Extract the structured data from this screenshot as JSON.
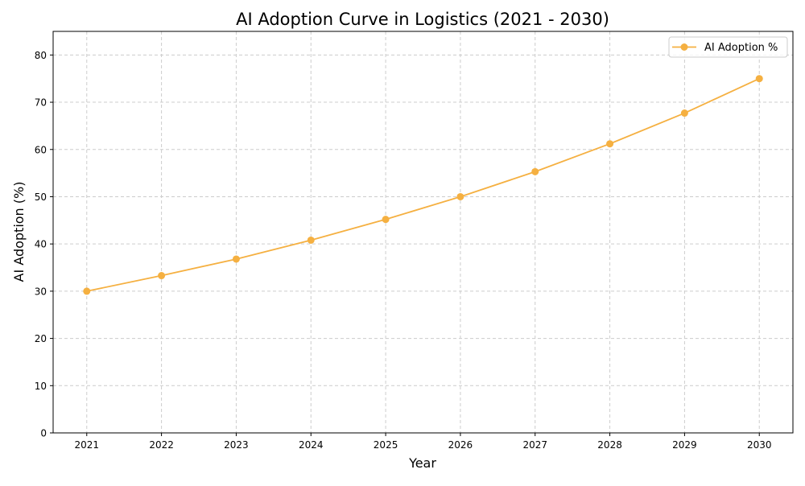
{
  "chart_data": {
    "type": "line",
    "title": "AI Adoption Curve in Logistics (2021 - 2030)",
    "xlabel": "Year",
    "ylabel": "AI Adoption (%)",
    "x": [
      2021,
      2022,
      2023,
      2024,
      2025,
      2026,
      2027,
      2028,
      2029,
      2030
    ],
    "series": [
      {
        "name": "AI Adoption %",
        "color": "#f5b041",
        "marker": "circle",
        "values": [
          30.0,
          33.3,
          36.8,
          40.8,
          45.2,
          50.0,
          55.3,
          61.2,
          67.7,
          75.0
        ]
      }
    ],
    "xlim": [
      2020.55,
      2030.45
    ],
    "ylim": [
      0,
      85
    ],
    "xticks": [
      "2021",
      "2022",
      "2023",
      "2024",
      "2025",
      "2026",
      "2027",
      "2028",
      "2029",
      "2030"
    ],
    "yticks": [
      "0",
      "10",
      "20",
      "30",
      "40",
      "50",
      "60",
      "70",
      "80"
    ],
    "grid": true,
    "grid_style": "dashed",
    "legend_position": "top-right"
  }
}
